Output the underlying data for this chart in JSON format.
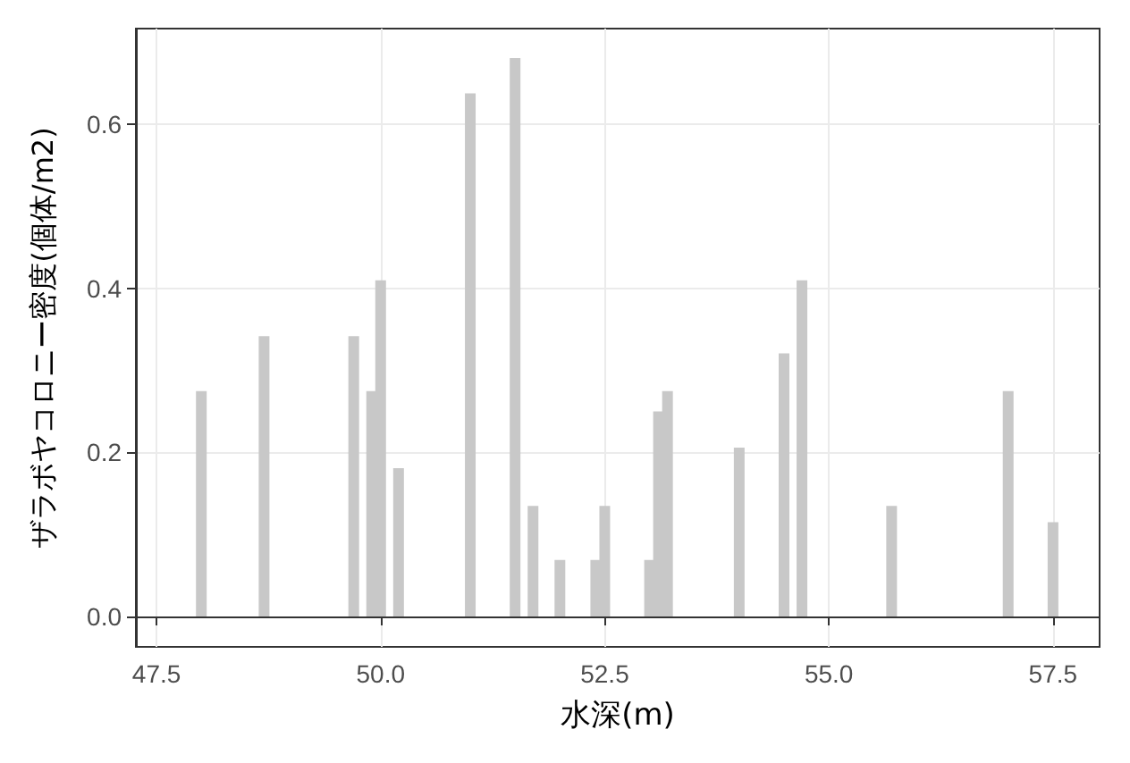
{
  "chart_data": {
    "type": "bar",
    "xlabel": "水深(m)",
    "ylabel": "ザラボヤコロニー密度(個体/m2)",
    "x": [
      48.0,
      48.7,
      49.7,
      49.9,
      50.0,
      50.2,
      51.0,
      51.5,
      51.7,
      52.0,
      52.4,
      52.5,
      53.0,
      53.1,
      53.2,
      54.0,
      54.5,
      54.7,
      55.7,
      57.0,
      57.5
    ],
    "values": [
      0.275,
      0.342,
      0.342,
      0.275,
      0.41,
      0.181,
      0.638,
      0.681,
      0.135,
      0.069,
      0.069,
      0.135,
      0.069,
      0.25,
      0.275,
      0.206,
      0.321,
      0.41,
      0.135,
      0.275,
      0.115
    ],
    "color": "#c8c8c8",
    "xlim": [
      47.27,
      58.02
    ],
    "ylim": [
      -0.037,
      0.717
    ],
    "xticks": [
      47.5,
      {
        "value": 50,
        "label": "50.0"
      },
      52.5,
      {
        "value": 55,
        "label": "55.0"
      },
      57.5
    ],
    "yticks": [
      {
        "value": 0,
        "label": "0.0"
      },
      0.2,
      0.4,
      0.6
    ],
    "grid": true
  }
}
